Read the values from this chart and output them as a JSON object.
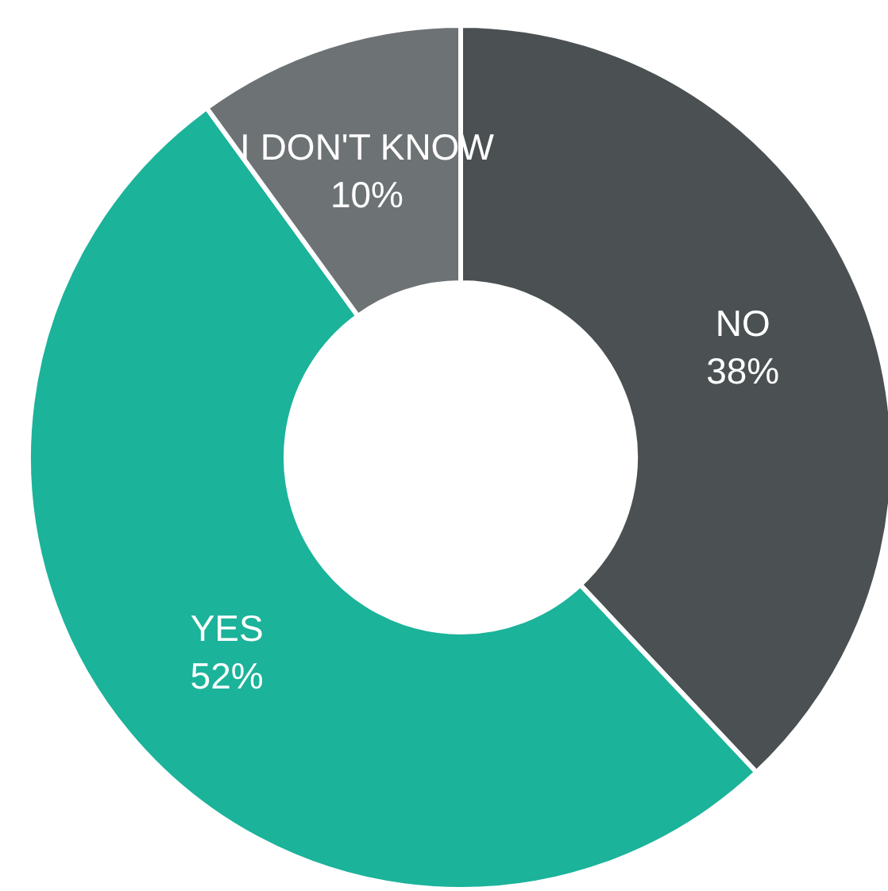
{
  "chart_data": {
    "type": "donut",
    "categories": [
      "NO",
      "YES",
      "I DON'T KNOW"
    ],
    "values": [
      38,
      52,
      10
    ],
    "value_labels": [
      "38%",
      "52%",
      "10%"
    ],
    "colors": [
      "#4b5152",
      "#1bb39a",
      "#6d7275"
    ],
    "legend": false
  }
}
